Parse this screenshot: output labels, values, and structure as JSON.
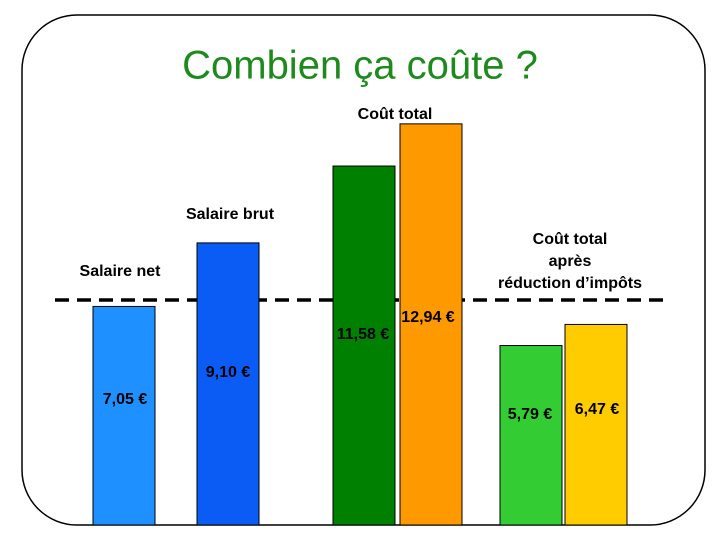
{
  "chart_data": {
    "type": "bar",
    "title": "Combien ça coûte ?",
    "groups": [
      {
        "label_lines": [
          "Salaire net"
        ],
        "bars": [
          {
            "value": 7.05,
            "value_label": "7,05 €",
            "color": "#1e90ff"
          }
        ]
      },
      {
        "label_lines": [
          "Salaire brut"
        ],
        "bars": [
          {
            "value": 9.1,
            "value_label": "9,10 €",
            "color": "#0a5cf5"
          }
        ]
      },
      {
        "label_lines": [
          "Coût total"
        ],
        "bars": [
          {
            "value": 11.58,
            "value_label": "11,58 €",
            "color": "#008000"
          },
          {
            "value": 12.94,
            "value_label": "12,94 €",
            "color": "#ff9900"
          }
        ]
      },
      {
        "label_lines": [
          "Coût total",
          "après",
          "réduction d’impôts"
        ],
        "bars": [
          {
            "value": 5.79,
            "value_label": "5,79 €",
            "color": "#33cc33"
          },
          {
            "value": 6.47,
            "value_label": "6,47 €",
            "color": "#ffcc00"
          }
        ]
      }
    ]
  }
}
